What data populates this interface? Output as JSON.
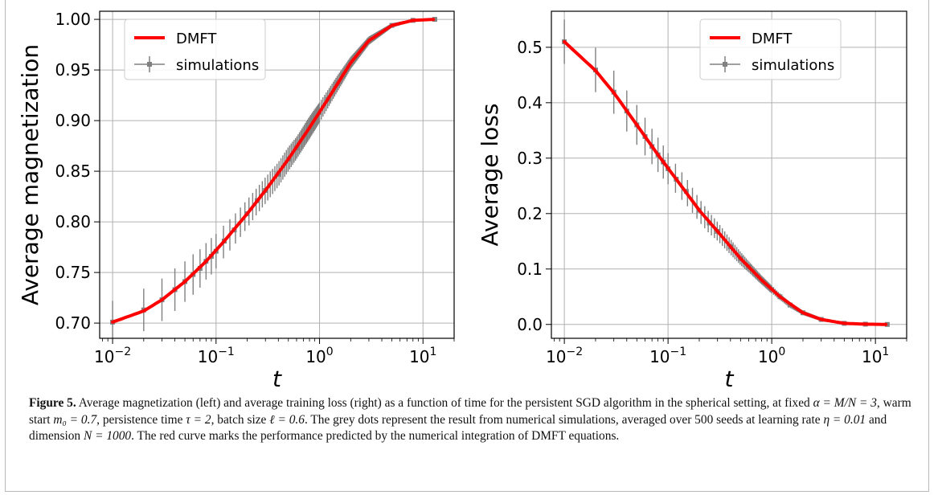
{
  "chart_data": [
    {
      "type": "line",
      "xscale": "log",
      "xlabel": "t",
      "ylabel": "Average magnetization",
      "xlim": [
        0.0075,
        20
      ],
      "ylim": [
        0.685,
        1.008
      ],
      "xticks": [
        "10^-2",
        "10^-1",
        "10^0",
        "10^1"
      ],
      "yticks": [
        "0.70",
        "0.75",
        "0.80",
        "0.85",
        "0.90",
        "0.95",
        "1.00"
      ],
      "grid": true,
      "legend_position": "top-left",
      "series": [
        {
          "name": "DMFT",
          "color": "#ff0000",
          "x": [
            0.01,
            0.02,
            0.03,
            0.05,
            0.08,
            0.12,
            0.2,
            0.3,
            0.5,
            0.8,
            1.2,
            2,
            3,
            5,
            8,
            13
          ],
          "y": [
            0.701,
            0.712,
            0.723,
            0.741,
            0.761,
            0.781,
            0.808,
            0.831,
            0.862,
            0.893,
            0.921,
            0.957,
            0.979,
            0.994,
            0.999,
            1.0
          ]
        },
        {
          "name": "simulations",
          "color": "#808080",
          "x": [
            0.01,
            0.02,
            0.03,
            0.04,
            0.05,
            0.06,
            0.07,
            0.08,
            0.09,
            0.1,
            0.12,
            0.15,
            0.2,
            0.25,
            0.3,
            0.4,
            0.5,
            0.6,
            0.8,
            1.0,
            1.2,
            1.5,
            2,
            3,
            5,
            8,
            13
          ],
          "y": [
            0.701,
            0.713,
            0.723,
            0.733,
            0.741,
            0.748,
            0.754,
            0.761,
            0.766,
            0.771,
            0.781,
            0.792,
            0.808,
            0.821,
            0.831,
            0.847,
            0.862,
            0.873,
            0.893,
            0.908,
            0.921,
            0.937,
            0.957,
            0.979,
            0.994,
            0.999,
            1.0
          ],
          "yerr": [
            0.021,
            0.021,
            0.021,
            0.021,
            0.02,
            0.02,
            0.019,
            0.018,
            0.018,
            0.017,
            0.016,
            0.015,
            0.014,
            0.013,
            0.013,
            0.012,
            0.012,
            0.011,
            0.011,
            0.01,
            0.009,
            0.008,
            0.006,
            0.004,
            0.002,
            0.001,
            0.001
          ]
        }
      ]
    },
    {
      "type": "line",
      "xscale": "log",
      "xlabel": "t",
      "ylabel": "Average loss",
      "xlim": [
        0.0075,
        20
      ],
      "ylim": [
        -0.025,
        0.565
      ],
      "xticks": [
        "10^-2",
        "10^-1",
        "10^0",
        "10^1"
      ],
      "yticks": [
        "0.0",
        "0.1",
        "0.2",
        "0.3",
        "0.4",
        "0.5"
      ],
      "grid": true,
      "legend_position": "top-right",
      "series": [
        {
          "name": "DMFT",
          "color": "#ff0000",
          "x": [
            0.01,
            0.02,
            0.03,
            0.05,
            0.08,
            0.12,
            0.2,
            0.3,
            0.5,
            0.8,
            1.2,
            2,
            3,
            5,
            8,
            13
          ],
          "y": [
            0.51,
            0.458,
            0.418,
            0.36,
            0.306,
            0.262,
            0.206,
            0.168,
            0.119,
            0.08,
            0.05,
            0.021,
            0.009,
            0.002,
            0.0005,
            0.0
          ]
        },
        {
          "name": "simulations",
          "color": "#808080",
          "x": [
            0.01,
            0.02,
            0.03,
            0.04,
            0.05,
            0.06,
            0.07,
            0.08,
            0.09,
            0.1,
            0.12,
            0.15,
            0.2,
            0.25,
            0.3,
            0.4,
            0.5,
            0.6,
            0.8,
            1.0,
            1.2,
            1.5,
            2,
            3,
            5,
            8,
            13
          ],
          "y": [
            0.51,
            0.459,
            0.419,
            0.385,
            0.36,
            0.339,
            0.321,
            0.306,
            0.293,
            0.281,
            0.262,
            0.24,
            0.206,
            0.183,
            0.168,
            0.14,
            0.119,
            0.104,
            0.08,
            0.063,
            0.05,
            0.035,
            0.021,
            0.009,
            0.002,
            0.0005,
            0.0
          ],
          "yerr": [
            0.04,
            0.04,
            0.039,
            0.037,
            0.036,
            0.034,
            0.032,
            0.031,
            0.03,
            0.028,
            0.026,
            0.024,
            0.021,
            0.019,
            0.017,
            0.014,
            0.012,
            0.01,
            0.008,
            0.007,
            0.006,
            0.005,
            0.004,
            0.003,
            0.002,
            0.001,
            0.001
          ]
        }
      ]
    }
  ],
  "caption": {
    "label": "Figure 5.",
    "parts": [
      {
        "t": " Average magnetization (left) and average training loss (right) as a function of time for the persistent SGD algorithm in the spherical setting, at fixed ",
        "m": false
      },
      {
        "t": "α = M/N = 3",
        "m": true
      },
      {
        "t": ", warm start ",
        "m": false
      },
      {
        "t": "m₀ = 0.7",
        "m": true
      },
      {
        "t": ", persistence time ",
        "m": false
      },
      {
        "t": "τ = 2",
        "m": true
      },
      {
        "t": ", batch size ",
        "m": false
      },
      {
        "t": "ℓ = 0.6",
        "m": true
      },
      {
        "t": ". The grey dots represent the result from numerical simulations, averaged over 500 seeds at learning rate ",
        "m": false
      },
      {
        "t": "η = 0.01",
        "m": true
      },
      {
        "t": " and dimension ",
        "m": false
      },
      {
        "t": "N = 1000",
        "m": true
      },
      {
        "t": ". The red curve marks the performance predicted by the numerical integration of DMFT equations.",
        "m": false
      }
    ]
  }
}
